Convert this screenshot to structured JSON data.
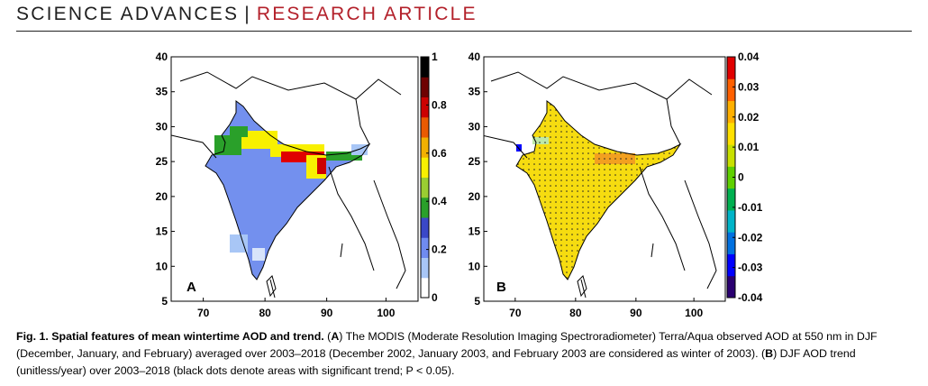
{
  "header": {
    "journal": "SCIENCE ADVANCES",
    "separator": "|",
    "section": "RESEARCH ARTICLE"
  },
  "figure": {
    "panels": [
      {
        "label": "A",
        "x_ticks": [
          "70",
          "80",
          "90",
          "100"
        ],
        "y_ticks": [
          "5",
          "10",
          "15",
          "20",
          "25",
          "30",
          "35",
          "40"
        ],
        "colorbar_ticks": [
          "0",
          "0.2",
          "0.4",
          "0.6",
          "0.8",
          "1"
        ],
        "colorbar_colors": [
          "#ffffff",
          "#a8c6f6",
          "#6f8bf0",
          "#3a48c8",
          "#2aa02a",
          "#9acd32",
          "#f8f000",
          "#f2b000",
          "#ea5a00",
          "#cc0000",
          "#6e0000",
          "#000000"
        ]
      },
      {
        "label": "B",
        "x_ticks": [
          "70",
          "80",
          "90",
          "100"
        ],
        "y_ticks": [
          "5",
          "10",
          "15",
          "20",
          "25",
          "30",
          "35",
          "40"
        ],
        "colorbar_ticks": [
          "-0.04",
          "-0.03",
          "-0.02",
          "-0.01",
          "0",
          "0.01",
          "0.02",
          "0.03",
          "0.04"
        ],
        "colorbar_colors": [
          "#2a0070",
          "#0000ff",
          "#0070e0",
          "#00b4c8",
          "#00b050",
          "#5fd000",
          "#c8e000",
          "#ffe000",
          "#ffb000",
          "#ff6000",
          "#e00000"
        ]
      }
    ]
  },
  "caption": {
    "title": "Fig. 1. Spatial features of mean wintertime AOD and trend.",
    "a_open": " (",
    "a_label": "A",
    "a_text": ") The MODIS (Moderate Resolution Imaging Spectroradiometer) Terra/Aqua observed AOD at 550 nm in DJF (December, January, and February) averaged over 2003–2018 (December 2002, January 2003, and February 2003 are considered as winter of 2003). (",
    "b_label": "B",
    "b_text": ") DJF AOD trend (unitless/year) over 2003–2018 (black dots denote areas with significant trend; P < 0.05)."
  },
  "colors": {
    "accent": "#b3202a",
    "land_blue": "#7390ee",
    "trend_yellow": "#f6dc10"
  }
}
